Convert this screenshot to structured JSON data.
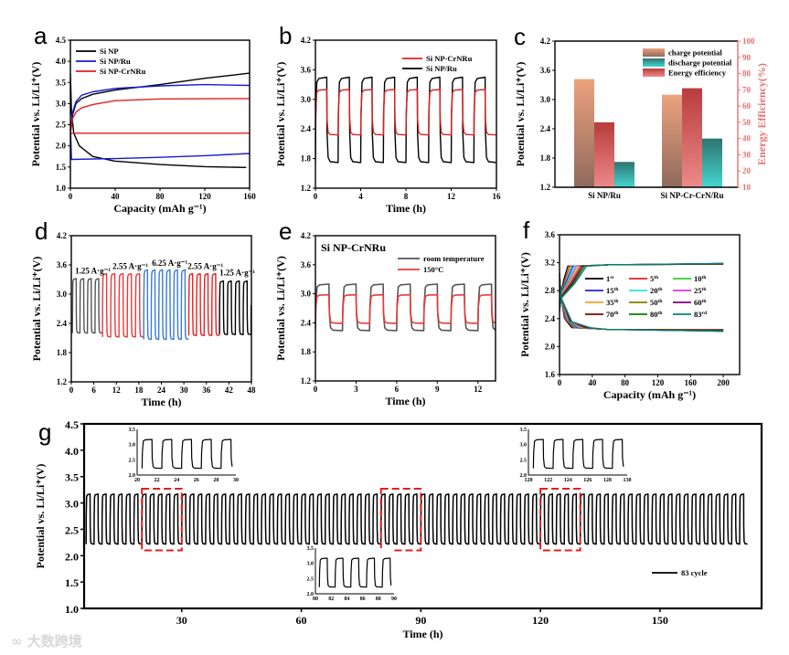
{
  "watermark": "大数跨境",
  "chart_data": [
    {
      "panel": "a",
      "type": "line",
      "xlabel": "Capacity (mAh g⁻¹)",
      "ylabel": "Potential vs. Li/Li⁺(V)",
      "xlim": [
        0,
        160
      ],
      "ylim": [
        1.0,
        4.5
      ],
      "xticks": [
        0,
        40,
        80,
        120,
        160
      ],
      "yticks": [
        1.0,
        1.5,
        2.0,
        2.5,
        3.0,
        3.5,
        4.0,
        4.5
      ],
      "legend": [
        {
          "name": "Si NP",
          "color": "#000000"
        },
        {
          "name": "Si NP/Ru",
          "color": "#1a1ad0"
        },
        {
          "name": "Si NP-CrNRu",
          "color": "#e02020"
        }
      ],
      "series": [
        {
          "name": "Si NP",
          "color": "#000000",
          "points": [
            [
              0,
              2.3
            ],
            [
              2,
              2.75
            ],
            [
              5,
              3.0
            ],
            [
              10,
              3.12
            ],
            [
              20,
              3.22
            ],
            [
              40,
              3.32
            ],
            [
              80,
              3.45
            ],
            [
              120,
              3.6
            ],
            [
              160,
              3.72
            ]
          ]
        },
        {
          "name": "Si NP",
          "color": "#000000",
          "points": [
            [
              0,
              3.7
            ],
            [
              1,
              2.8
            ],
            [
              3,
              2.3
            ],
            [
              8,
              2.0
            ],
            [
              20,
              1.75
            ],
            [
              40,
              1.64
            ],
            [
              80,
              1.56
            ],
            [
              120,
              1.51
            ],
            [
              157,
              1.49
            ]
          ]
        },
        {
          "name": "Si NP/Ru",
          "color": "#1a1ad0",
          "points": [
            [
              0,
              2.3
            ],
            [
              2,
              2.8
            ],
            [
              5,
              3.05
            ],
            [
              10,
              3.2
            ],
            [
              20,
              3.28
            ],
            [
              40,
              3.36
            ],
            [
              80,
              3.42
            ],
            [
              120,
              3.45
            ],
            [
              160,
              3.43
            ]
          ]
        },
        {
          "name": "Si NP/Ru",
          "color": "#1a1ad0",
          "points": [
            [
              0,
              2.5
            ],
            [
              1,
              1.68
            ],
            [
              40,
              1.7
            ],
            [
              80,
              1.73
            ],
            [
              120,
              1.77
            ],
            [
              160,
              1.82
            ]
          ]
        },
        {
          "name": "Si NP-CrNRu",
          "color": "#e02020",
          "points": [
            [
              0,
              2.3
            ],
            [
              2,
              2.65
            ],
            [
              5,
              2.8
            ],
            [
              10,
              2.9
            ],
            [
              20,
              2.98
            ],
            [
              40,
              3.07
            ],
            [
              80,
              3.11
            ],
            [
              160,
              3.12
            ]
          ]
        },
        {
          "name": "Si NP-CrNRu",
          "color": "#e02020",
          "points": [
            [
              0,
              2.3
            ],
            [
              160,
              2.3
            ]
          ]
        }
      ]
    },
    {
      "panel": "b",
      "type": "line",
      "xlabel": "Time (h)",
      "ylabel": "Potential vs. Li/Li⁺(V)",
      "xlim": [
        0,
        16
      ],
      "ylim": [
        1.2,
        4.2
      ],
      "xticks": [
        0,
        4,
        8,
        12,
        16
      ],
      "yticks": [
        1.2,
        1.8,
        2.4,
        3.0,
        3.6,
        4.2
      ],
      "legend": [
        {
          "name": "Si NP-CrNRu",
          "color": "#e02020"
        },
        {
          "name": "Si NP/Ru",
          "color": "#000000"
        }
      ],
      "series": [
        {
          "name": "Si NP/Ru",
          "color": "#000000",
          "wave": {
            "start": 0,
            "end": 16,
            "period": 2,
            "high": 3.45,
            "low": 1.72
          }
        },
        {
          "name": "Si NP-CrNRu",
          "color": "#e02020",
          "wave": {
            "start": 0,
            "end": 16,
            "period": 2,
            "high": 3.2,
            "low": 2.28
          }
        }
      ]
    },
    {
      "panel": "c",
      "type": "bar",
      "ylabel": "Potential vs. Li/Li⁺(V)",
      "ylabel_right": "Energy Efficiency(%)",
      "ylim": [
        1.2,
        4.2
      ],
      "yticks": [
        1.2,
        1.8,
        2.4,
        3.0,
        3.6,
        4.2
      ],
      "ylim_right": [
        10,
        100
      ],
      "yticks_right": [
        10,
        20,
        30,
        40,
        50,
        60,
        70,
        80,
        90,
        100
      ],
      "categories": [
        "Si NP/Ru",
        "Si NP-Cr-CrN/Ru"
      ],
      "series": [
        {
          "name": "charge potential",
          "axis": "left",
          "color": "#e8a07c",
          "values": [
            3.42,
            3.1
          ]
        },
        {
          "name": "Energy efficiency",
          "axis": "right",
          "color": "#c84848",
          "values": [
            50,
            71
          ]
        },
        {
          "name": "discharge potential",
          "axis": "left",
          "color": "#3cc4c0",
          "values": [
            1.72,
            2.2
          ]
        }
      ],
      "legend": [
        {
          "name": "charge potential",
          "color": "#e8a07c"
        },
        {
          "name": "discharge potential",
          "color": "#3cc4c0"
        },
        {
          "name": "Energy efficiency",
          "color": "#c84848"
        }
      ]
    },
    {
      "panel": "d",
      "type": "line",
      "xlabel": "Time (h)",
      "ylabel": "Potential vs. Li/Li⁺(V)",
      "xlim": [
        0,
        48
      ],
      "ylim": [
        1.2,
        4.2
      ],
      "xticks": [
        0,
        6,
        12,
        18,
        24,
        30,
        36,
        42,
        48
      ],
      "yticks": [
        1.2,
        1.8,
        2.4,
        3.0,
        3.6,
        4.2
      ],
      "annotations": [
        {
          "text": "1.25 A·g⁻¹",
          "x": 1,
          "y": 3.42
        },
        {
          "text": "2.55 A·g⁻¹",
          "x": 11,
          "y": 3.52
        },
        {
          "text": "6.25 A·g⁻¹",
          "x": 21.5,
          "y": 3.58
        },
        {
          "text": "2.55 A·g⁻¹",
          "x": 31,
          "y": 3.52
        },
        {
          "text": "1.25 A·g⁻¹",
          "x": 39.5,
          "y": 3.38
        }
      ],
      "series": [
        {
          "name": "1.25 A·g⁻¹",
          "color": "#555555",
          "wave": {
            "start": 0.3,
            "end": 8.3,
            "period": 2,
            "high": 3.32,
            "low": 2.2
          }
        },
        {
          "name": "2.55 A·g⁻¹",
          "color": "#e83a3a",
          "wave": {
            "start": 8.3,
            "end": 19.3,
            "period": 2.2,
            "high": 3.42,
            "low": 2.12
          }
        },
        {
          "name": "6.25 A·g⁻¹",
          "color": "#3a7ad8",
          "wave": {
            "start": 19.3,
            "end": 31.3,
            "period": 2,
            "high": 3.5,
            "low": 2.07
          }
        },
        {
          "name": "2.55 A·g⁻¹",
          "color": "#e82020",
          "wave": {
            "start": 31.3,
            "end": 39.5,
            "period": 2.05,
            "high": 3.42,
            "low": 2.15
          }
        },
        {
          "name": "1.25 A·g⁻¹",
          "color": "#000000",
          "wave": {
            "start": 39.5,
            "end": 48,
            "period": 2.1,
            "high": 3.27,
            "low": 2.17
          }
        }
      ]
    },
    {
      "panel": "e",
      "type": "line",
      "xlabel": "Time (h)",
      "ylabel": "Potential vs. Li/Li⁺(V)",
      "xlim": [
        0,
        13.3
      ],
      "ylim": [
        1.2,
        4.2
      ],
      "xticks": [
        0,
        3,
        6,
        9,
        12
      ],
      "yticks": [
        1.2,
        1.8,
        2.4,
        3.0,
        3.6,
        4.2
      ],
      "title": "Si NP-CrNRu",
      "legend": [
        {
          "name": "room temperature",
          "color": "#555555"
        },
        {
          "name": "150°C",
          "color": "#e83a3a"
        }
      ],
      "series": [
        {
          "name": "room temperature",
          "color": "#555555",
          "wave": {
            "start": 0,
            "end": 13.3,
            "period": 2,
            "high": 3.2,
            "low": 2.24
          }
        },
        {
          "name": "150°C",
          "color": "#e83a3a",
          "wave": {
            "start": 0,
            "end": 13.3,
            "period": 2,
            "high": 2.98,
            "low": 2.39
          }
        }
      ]
    },
    {
      "panel": "f",
      "type": "line",
      "xlabel": "Capacity (mAh g⁻¹)",
      "ylabel": "Potential vs. Li/Li⁺(V)",
      "xlim": [
        0,
        220
      ],
      "ylim": [
        1.6,
        3.6
      ],
      "xticks": [
        0,
        40,
        80,
        120,
        160,
        200
      ],
      "yticks": [
        1.6,
        2.0,
        2.4,
        2.8,
        3.2,
        3.6
      ],
      "legend": [
        {
          "name": "1st",
          "color": "#000000"
        },
        {
          "name": "5th",
          "color": "#e02020"
        },
        {
          "name": "10th",
          "color": "#30d030"
        },
        {
          "name": "15th",
          "color": "#2020e0"
        },
        {
          "name": "20th",
          "color": "#30e0e0"
        },
        {
          "name": "25th",
          "color": "#e030e0"
        },
        {
          "name": "35th",
          "color": "#f0a030"
        },
        {
          "name": "50th",
          "color": "#808000"
        },
        {
          "name": "60th",
          "color": "#800080"
        },
        {
          "name": "70th",
          "color": "#800000"
        },
        {
          "name": "80th",
          "color": "#008000"
        },
        {
          "name": "83rd",
          "color": "#008080"
        }
      ],
      "charge_plateau": 3.18,
      "discharge_plateau": 2.24,
      "capacity": 200
    },
    {
      "panel": "g",
      "type": "line",
      "xlabel": "Time (h)",
      "ylabel": "Potential vs. Li/Li⁺(V)",
      "xlim": [
        5.5,
        175.5
      ],
      "ylim": [
        1.0,
        4.5
      ],
      "xticks": [
        30,
        60,
        90,
        120,
        150
      ],
      "yticks": [
        1.0,
        1.5,
        2.0,
        2.5,
        3.0,
        3.5,
        4.0,
        4.5
      ],
      "legend": [
        {
          "name": "83 cycle",
          "color": "#000000"
        }
      ],
      "series": [
        {
          "name": "83 cycle",
          "color": "#000000",
          "wave": {
            "start": 6,
            "end": 172,
            "period": 2,
            "high": 3.17,
            "low": 2.22
          }
        }
      ],
      "highlight_windows": [
        [
          20,
          30
        ],
        [
          80,
          90
        ],
        [
          120,
          130
        ]
      ],
      "insets": [
        {
          "xlim": [
            20,
            30
          ],
          "ylim": [
            2.0,
            3.5
          ],
          "xticks": [
            20,
            22,
            24,
            26,
            28,
            30
          ],
          "yticks": [
            2.0,
            2.5,
            3.0,
            3.5
          ]
        },
        {
          "xlim": [
            80,
            90
          ],
          "ylim": [
            2.0,
            3.5
          ],
          "xticks": [
            80,
            82,
            84,
            86,
            88,
            90
          ],
          "yticks": [
            2.0,
            2.5,
            3.0,
            3.5
          ]
        },
        {
          "xlim": [
            120,
            130
          ],
          "ylim": [
            2.0,
            3.5
          ],
          "xticks": [
            120,
            122,
            124,
            126,
            128,
            130
          ],
          "yticks": [
            2.0,
            2.5,
            3.0,
            3.5
          ]
        }
      ]
    }
  ]
}
